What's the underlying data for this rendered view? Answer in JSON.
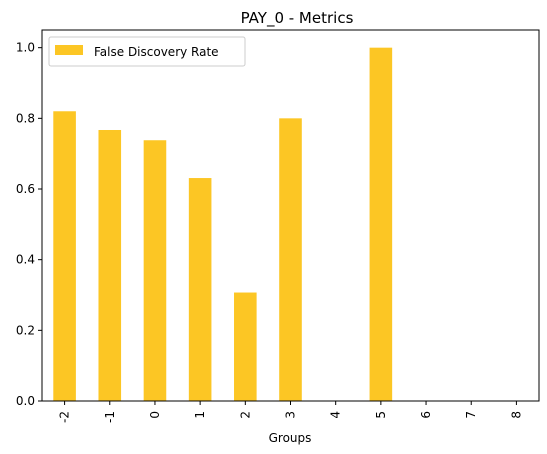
{
  "chart_data": {
    "type": "bar",
    "title": "PAY_0 - Metrics",
    "xlabel": "Groups",
    "ylabel": "",
    "categories": [
      "-2",
      "-1",
      "0",
      "1",
      "2",
      "3",
      "4",
      "5",
      "6",
      "7",
      "8"
    ],
    "series": [
      {
        "name": "False Discovery Rate",
        "color": "#fcc624",
        "values": [
          0.82,
          0.767,
          0.738,
          0.631,
          0.307,
          0.8,
          0,
          1.0,
          0,
          0,
          0
        ]
      }
    ],
    "ylim": [
      0,
      1.05
    ],
    "yticks": [
      "0.0",
      "0.2",
      "0.4",
      "0.6",
      "0.8",
      "1.0"
    ],
    "grid": false,
    "legend": "top-left"
  }
}
